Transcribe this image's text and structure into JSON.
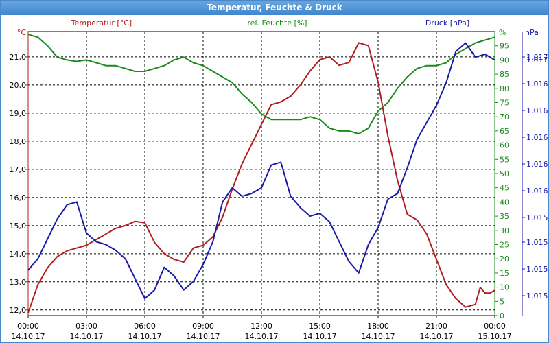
{
  "window": {
    "title": "Temperatur, Feuchte & Druck"
  },
  "colors": {
    "temperature": "#b01e1e",
    "humidity": "#1a8a1a",
    "pressure": "#1a1aa8",
    "grid": "#000000",
    "axis": "#000000"
  },
  "chart_data": {
    "type": "line",
    "title": "Temperatur, Feuchte & Druck",
    "grid": true,
    "x_ticks": [
      {
        "time": "00:00",
        "date": "14.10.17"
      },
      {
        "time": "03:00",
        "date": "14.10.17"
      },
      {
        "time": "06:00",
        "date": "14.10.17"
      },
      {
        "time": "09:00",
        "date": "14.10.17"
      },
      {
        "time": "12:00",
        "date": "14.10.17"
      },
      {
        "time": "15:00",
        "date": "14.10.17"
      },
      {
        "time": "18:00",
        "date": "14.10.17"
      },
      {
        "time": "21:00",
        "date": "14.10.17"
      },
      {
        "time": "00:00",
        "date": "15.10.17"
      }
    ],
    "axes": {
      "temperature": {
        "label": "Temperatur [°C]",
        "unit": "°C",
        "ylim": [
          11.8,
          21.9
        ],
        "ticks": [
          "12,0",
          "13,0",
          "14,0",
          "15,0",
          "16,0",
          "17,0",
          "18,0",
          "19,0",
          "20,0",
          "21,0"
        ]
      },
      "humidity": {
        "label": "rel. Feuchte [%]",
        "unit": "%",
        "ylim": [
          0,
          100
        ],
        "ticks": [
          "0",
          "5",
          "10",
          "15",
          "20",
          "25",
          "30",
          "35",
          "40",
          "45",
          "50",
          "55",
          "60",
          "65",
          "70",
          "75",
          "80",
          "85",
          "90",
          "95"
        ]
      },
      "pressure": {
        "label": "Druck [hPa]",
        "unit": "hPa",
        "ticks": [
          "1.015",
          "1.015",
          "1.015",
          "1.015",
          "1.016",
          "1.016",
          "1.016",
          "1.016",
          "1.016",
          "1.017",
          "1.017"
        ]
      }
    },
    "series": [
      {
        "name": "Temperatur [°C]",
        "axis": "temperature",
        "x_hours": [
          0,
          0.5,
          1,
          1.5,
          2,
          2.5,
          3,
          3.5,
          4,
          4.5,
          5,
          5.5,
          6,
          6.5,
          7,
          7.5,
          8,
          8.5,
          9,
          9.5,
          10,
          10.5,
          11,
          11.5,
          12,
          12.5,
          13,
          13.5,
          14,
          14.5,
          15,
          15.5,
          16,
          16.5,
          17,
          17.5,
          18,
          18.5,
          19,
          19.5,
          20,
          20.5,
          21,
          21.5,
          22,
          22.5,
          23,
          23.25,
          23.5,
          23.75,
          24
        ],
        "values": [
          11.9,
          12.9,
          13.5,
          13.9,
          14.1,
          14.2,
          14.3,
          14.5,
          14.7,
          14.9,
          15.0,
          15.15,
          15.1,
          14.4,
          14.0,
          13.8,
          13.7,
          14.2,
          14.3,
          14.6,
          15.3,
          16.3,
          17.2,
          17.9,
          18.6,
          19.3,
          19.4,
          19.6,
          20.0,
          20.5,
          20.9,
          21.0,
          20.7,
          20.8,
          21.5,
          21.4,
          20.1,
          18.2,
          16.6,
          15.4,
          15.2,
          14.7,
          13.8,
          12.9,
          12.4,
          12.1,
          12.2,
          12.8,
          12.6,
          12.6,
          12.7
        ]
      },
      {
        "name": "rel. Feuchte [%]",
        "axis": "humidity",
        "x_hours": [
          0,
          0.5,
          1,
          1.5,
          2,
          2.5,
          3,
          3.5,
          4,
          4.5,
          5,
          5.5,
          6,
          6.5,
          7,
          7.5,
          8,
          8.5,
          9,
          9.5,
          10,
          10.5,
          11,
          11.5,
          12,
          12.5,
          13,
          13.5,
          14,
          14.5,
          15,
          15.5,
          16,
          16.5,
          17,
          17.5,
          18,
          18.5,
          19,
          19.5,
          20,
          20.5,
          21,
          21.5,
          22,
          22.5,
          23,
          23.5,
          24
        ],
        "values": [
          99,
          98,
          95,
          91,
          90,
          89.5,
          90,
          89,
          88,
          88,
          87,
          86,
          86,
          87,
          88,
          90,
          91,
          89,
          88,
          86,
          84,
          82,
          78,
          75,
          71,
          69,
          69,
          69,
          69,
          70,
          69,
          66,
          65,
          65,
          64,
          66,
          72,
          75,
          80,
          84,
          87,
          88,
          88,
          89,
          92,
          94,
          96,
          97,
          98
        ]
      },
      {
        "name": "Druck [hPa]",
        "axis": "pressure",
        "x_hours": [
          0,
          0.5,
          1,
          1.5,
          2,
          2.5,
          3,
          3.5,
          4,
          4.5,
          5,
          5.5,
          6,
          6.5,
          7,
          7.5,
          8,
          8.5,
          9,
          9.5,
          10,
          10.5,
          11,
          11.5,
          12,
          12.5,
          13,
          13.5,
          14,
          14.5,
          15,
          15.5,
          16,
          16.5,
          17,
          17.5,
          18,
          18.5,
          19,
          19.5,
          20,
          20.5,
          21,
          21.5,
          22,
          22.5,
          23,
          23.5,
          24
        ],
        "values": [
          16,
          20,
          27,
          34,
          39,
          40,
          29,
          26,
          25,
          23,
          20,
          13,
          6,
          9,
          17,
          14,
          9,
          12,
          18,
          26,
          40,
          45,
          42,
          43,
          45,
          53,
          54,
          42,
          38,
          35,
          36,
          33,
          26,
          19,
          15,
          25,
          31,
          41,
          43,
          52,
          62,
          68,
          74,
          82,
          93,
          96,
          91,
          92,
          90
        ],
        "unit_note": ""
      }
    ]
  }
}
